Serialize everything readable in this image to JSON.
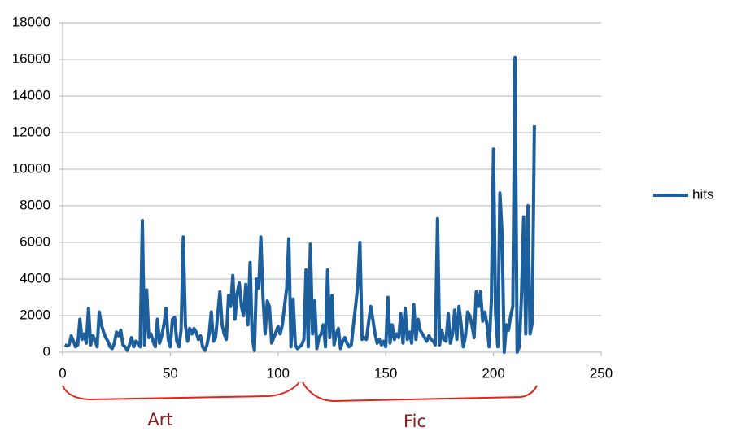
{
  "chart_data": {
    "type": "line",
    "x": [
      1,
      2,
      3,
      4,
      5,
      6,
      7,
      8,
      9,
      10,
      11,
      12,
      13,
      14,
      15,
      16,
      17,
      18,
      19,
      20,
      21,
      22,
      23,
      24,
      25,
      26,
      27,
      28,
      29,
      30,
      31,
      32,
      33,
      34,
      35,
      36,
      37,
      38,
      39,
      40,
      41,
      42,
      43,
      44,
      45,
      46,
      47,
      48,
      49,
      50,
      51,
      52,
      53,
      54,
      55,
      56,
      57,
      58,
      59,
      60,
      61,
      62,
      63,
      64,
      65,
      66,
      67,
      68,
      69,
      70,
      71,
      72,
      73,
      74,
      75,
      76,
      77,
      78,
      79,
      80,
      81,
      82,
      83,
      84,
      85,
      86,
      87,
      88,
      89,
      90,
      91,
      92,
      93,
      94,
      95,
      96,
      97,
      98,
      99,
      100,
      101,
      102,
      103,
      104,
      105,
      106,
      107,
      108,
      109,
      110,
      111,
      112,
      113,
      114,
      115,
      116,
      117,
      118,
      119,
      120,
      121,
      122,
      123,
      124,
      125,
      126,
      127,
      128,
      129,
      130,
      131,
      132,
      133,
      134,
      135,
      136,
      137,
      138,
      139,
      140,
      141,
      142,
      143,
      144,
      145,
      146,
      147,
      148,
      149,
      150,
      151,
      152,
      153,
      154,
      155,
      156,
      157,
      158,
      159,
      160,
      161,
      162,
      163,
      164,
      165,
      166,
      167,
      168,
      169,
      170,
      171,
      172,
      173,
      174,
      175,
      176,
      177,
      178,
      179,
      180,
      181,
      182,
      183,
      184,
      185,
      186,
      187,
      188,
      189,
      190,
      191,
      192,
      193,
      194,
      195,
      196,
      197,
      198,
      199,
      200,
      201,
      202,
      203,
      204,
      205,
      206,
      207,
      208,
      209,
      210,
      211,
      212,
      213,
      214,
      215,
      216,
      217,
      218,
      219
    ],
    "series": [
      {
        "name": "hits",
        "color": "#1c5f9c",
        "values": [
          400,
          350,
          400,
          900,
          600,
          300,
          400,
          1800,
          700,
          1000,
          500,
          2400,
          400,
          900,
          700,
          300,
          2200,
          1500,
          1100,
          800,
          600,
          300,
          200,
          500,
          1100,
          900,
          1200,
          400,
          300,
          100,
          400,
          800,
          300,
          600,
          500,
          300,
          7200,
          400,
          3400,
          800,
          1000,
          600,
          300,
          1800,
          500,
          900,
          1500,
          2400,
          700,
          300,
          1800,
          1900,
          600,
          300,
          1200,
          6300,
          1500,
          600,
          1300,
          1000,
          1300,
          1100,
          700,
          900,
          300,
          100,
          400,
          1000,
          2200,
          600,
          800,
          2100,
          3300,
          1500,
          1000,
          700,
          3100,
          2500,
          4200,
          1800,
          3200,
          3800,
          2500,
          2000,
          3700,
          1500,
          4900,
          800,
          100,
          4000,
          3500,
          6300,
          3000,
          1000,
          2800,
          2500,
          500,
          800,
          1100,
          1400,
          1000,
          1500,
          2500,
          3500,
          6200,
          300,
          2900,
          400,
          200,
          300,
          400,
          700,
          4500,
          300,
          5900,
          1000,
          2800,
          200,
          800,
          1000,
          1500,
          300,
          4500,
          800,
          3100,
          400,
          1000,
          1300,
          200,
          600,
          800,
          500,
          300,
          400,
          1500,
          2500,
          3700,
          6000,
          700,
          800,
          700,
          1600,
          2500,
          1800,
          1000,
          500,
          700,
          400,
          600,
          300,
          3000,
          500,
          1500,
          700,
          1000,
          800,
          2100,
          500,
          2400,
          700,
          1100,
          500,
          2600,
          700,
          1800,
          1200,
          1000,
          800,
          600,
          900,
          700,
          600,
          400,
          7300,
          400,
          1200,
          700,
          600,
          2100,
          500,
          1000,
          2300,
          700,
          2500,
          1500,
          300,
          900,
          2200,
          2000,
          1500,
          800,
          3300,
          2500,
          3300,
          1700,
          2200,
          1500,
          300,
          2800,
          11100,
          2100,
          300,
          8700,
          6500,
          0,
          1500,
          1200,
          2000,
          2500,
          16100,
          0,
          300,
          3000,
          7400,
          1000,
          8000,
          1000,
          1600,
          12400
        ]
      }
    ],
    "xlim": [
      0,
      250
    ],
    "xticks": [
      0,
      50,
      100,
      150,
      200,
      250
    ],
    "ylim": [
      0,
      18000
    ],
    "yticks": [
      0,
      2000,
      4000,
      6000,
      8000,
      10000,
      12000,
      14000,
      16000,
      18000
    ],
    "grid": true,
    "legend": "right",
    "annotations": [
      "Art",
      "Fic"
    ]
  }
}
